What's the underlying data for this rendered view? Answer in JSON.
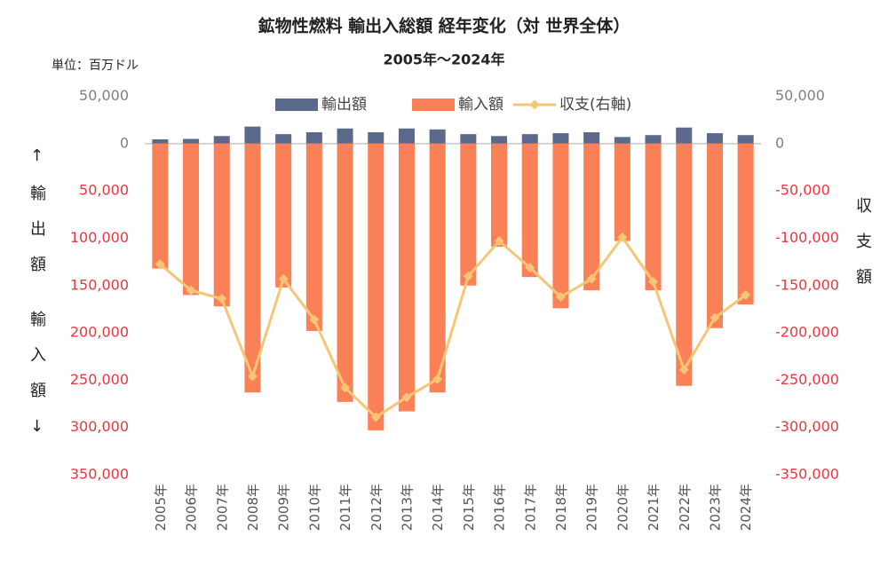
{
  "chart_data": {
    "type": "bar_line",
    "title": "鉱物性燃料 輸出入総額 経年変化（対 世界全体）",
    "subtitle": "2005年～2024年",
    "unit_label": "単位：百万ドル",
    "y_label_top": "↑輸出額",
    "y_label_bottom": "輸入額↓",
    "y2_label": "収支額",
    "categories": [
      "2005年",
      "2006年",
      "2007年",
      "2008年",
      "2009年",
      "2010年",
      "2011年",
      "2012年",
      "2013年",
      "2014年",
      "2015年",
      "2016年",
      "2017年",
      "2018年",
      "2019年",
      "2020年",
      "2021年",
      "2022年",
      "2023年",
      "2024年"
    ],
    "series": [
      {
        "name": "輸出額",
        "color": "#5b6a8c",
        "kind": "bar",
        "values": [
          4500,
          5000,
          8000,
          18000,
          10000,
          12000,
          16000,
          12000,
          16000,
          15000,
          10000,
          8000,
          10000,
          11000,
          12000,
          7000,
          9000,
          17000,
          11000,
          9000
        ]
      },
      {
        "name": "輸入額",
        "color": "#fa8058",
        "kind": "bar",
        "values": [
          -132000,
          -160000,
          -172000,
          -263000,
          -152000,
          -198000,
          -273000,
          -303000,
          -283000,
          -263000,
          -150000,
          -109000,
          -141000,
          -174000,
          -155000,
          -103000,
          -155000,
          -256000,
          -195000,
          -170000
        ]
      },
      {
        "name": "収支(右軸)",
        "color": "#f5c676",
        "kind": "line",
        "axis": "y2",
        "values": [
          -127500,
          -155000,
          -164000,
          -246000,
          -143000,
          -186000,
          -258000,
          -289000,
          -268000,
          -249000,
          -140000,
          -103000,
          -131000,
          -162000,
          -143000,
          -99000,
          -146000,
          -239000,
          -184000,
          -160000
        ]
      }
    ],
    "ylim": [
      -350000,
      50000
    ],
    "yticks": [
      {
        "value": 50000,
        "label": "50,000"
      },
      0,
      {
        "value": -50000,
        "label": "50,000"
      },
      {
        "value": -100000,
        "label": "100,000"
      },
      {
        "value": -150000,
        "label": "150,000"
      },
      {
        "value": -200000,
        "label": "200,000"
      },
      {
        "value": -250000,
        "label": "250,000"
      },
      {
        "value": -300000,
        "label": "300,000"
      },
      {
        "value": -350000,
        "label": "350,000"
      }
    ],
    "y2lim": [
      -350000,
      50000
    ],
    "y2ticks": [
      {
        "value": 50000,
        "label": "50,000"
      },
      0,
      {
        "value": -50000,
        "label": "-50,000"
      },
      {
        "value": -100000,
        "label": "-100,000"
      },
      {
        "value": -150000,
        "label": "-150,000"
      },
      {
        "value": -200000,
        "label": "-200,000"
      },
      {
        "value": -250000,
        "label": "-250,000"
      },
      {
        "value": -300000,
        "label": "-300,000"
      },
      {
        "value": -350000,
        "label": "-350,000"
      }
    ],
    "tick_color": "#7f7f7f",
    "negative_tick_color": "#e8383d",
    "legend": "top"
  }
}
